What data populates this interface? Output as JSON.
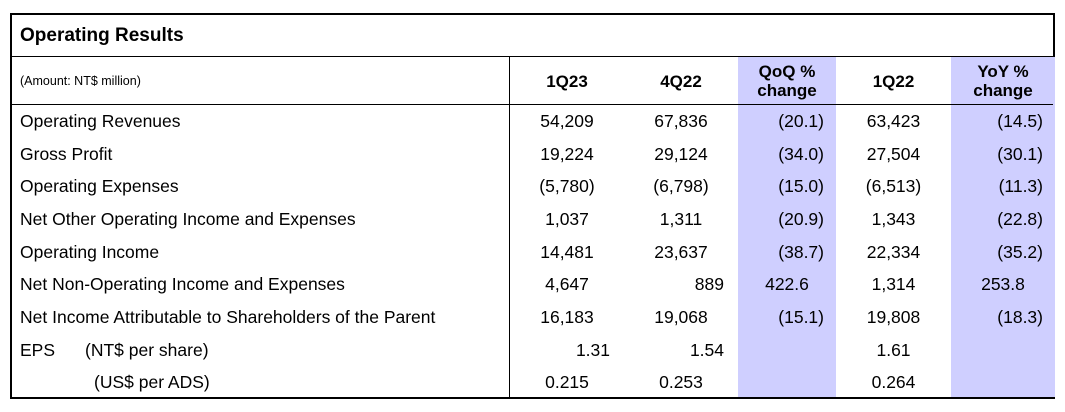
{
  "table": {
    "title": "Operating Results",
    "amount_note": "(Amount: NT$ million)",
    "headers": {
      "c1": "1Q23",
      "c2": "4Q22",
      "c3_line1": "QoQ %",
      "c3_line2": "change",
      "c4": "1Q22",
      "c5_line1": "YoY %",
      "c5_line2": "change"
    },
    "rows": [
      {
        "label": "Operating Revenues",
        "q123": "54,209",
        "q422": "67,836",
        "qoq": "(20.1)",
        "q122": "63,423",
        "yoy": "(14.5)"
      },
      {
        "label": "Gross Profit",
        "q123": "19,224",
        "q422": "29,124",
        "qoq": "(34.0)",
        "q122": "27,504",
        "yoy": "(30.1)"
      },
      {
        "label": "Operating Expenses",
        "q123": "(5,780)",
        "q422": "(6,798)",
        "qoq": "(15.0)",
        "q122": "(6,513)",
        "yoy": "(11.3)"
      },
      {
        "label": "Net Other Operating Income and Expenses",
        "q123": "1,037",
        "q422": "1,311",
        "qoq": "(20.9)",
        "q122": "1,343",
        "yoy": "(22.8)"
      },
      {
        "label": "Operating Income",
        "q123": "14,481",
        "q422": "23,637",
        "qoq": "(38.7)",
        "q122": "22,334",
        "yoy": "(35.2)"
      },
      {
        "label": "Net Non-Operating Income and Expenses",
        "q123": "4,647",
        "q422": "889",
        "qoq": "422.6",
        "q122": "1,314",
        "yoy": "253.8"
      },
      {
        "label": "Net Income Attributable to Shareholders of the Parent",
        "q123": "16,183",
        "q422": "19,068",
        "qoq": "(15.1)",
        "q122": "19,808",
        "yoy": "(18.3)"
      },
      {
        "label": "EPS",
        "sublabel": "(NT$ per share)",
        "q123": "1.31",
        "q422": "1.54",
        "qoq": "",
        "q122": "1.61",
        "yoy": ""
      },
      {
        "label": "",
        "sublabel": "(US$ per ADS)",
        "q123": "0.215",
        "q422": "0.253",
        "qoq": "",
        "q122": "0.264",
        "yoy": ""
      }
    ],
    "colors": {
      "highlight": "#cfcfff",
      "border": "#000000"
    }
  }
}
